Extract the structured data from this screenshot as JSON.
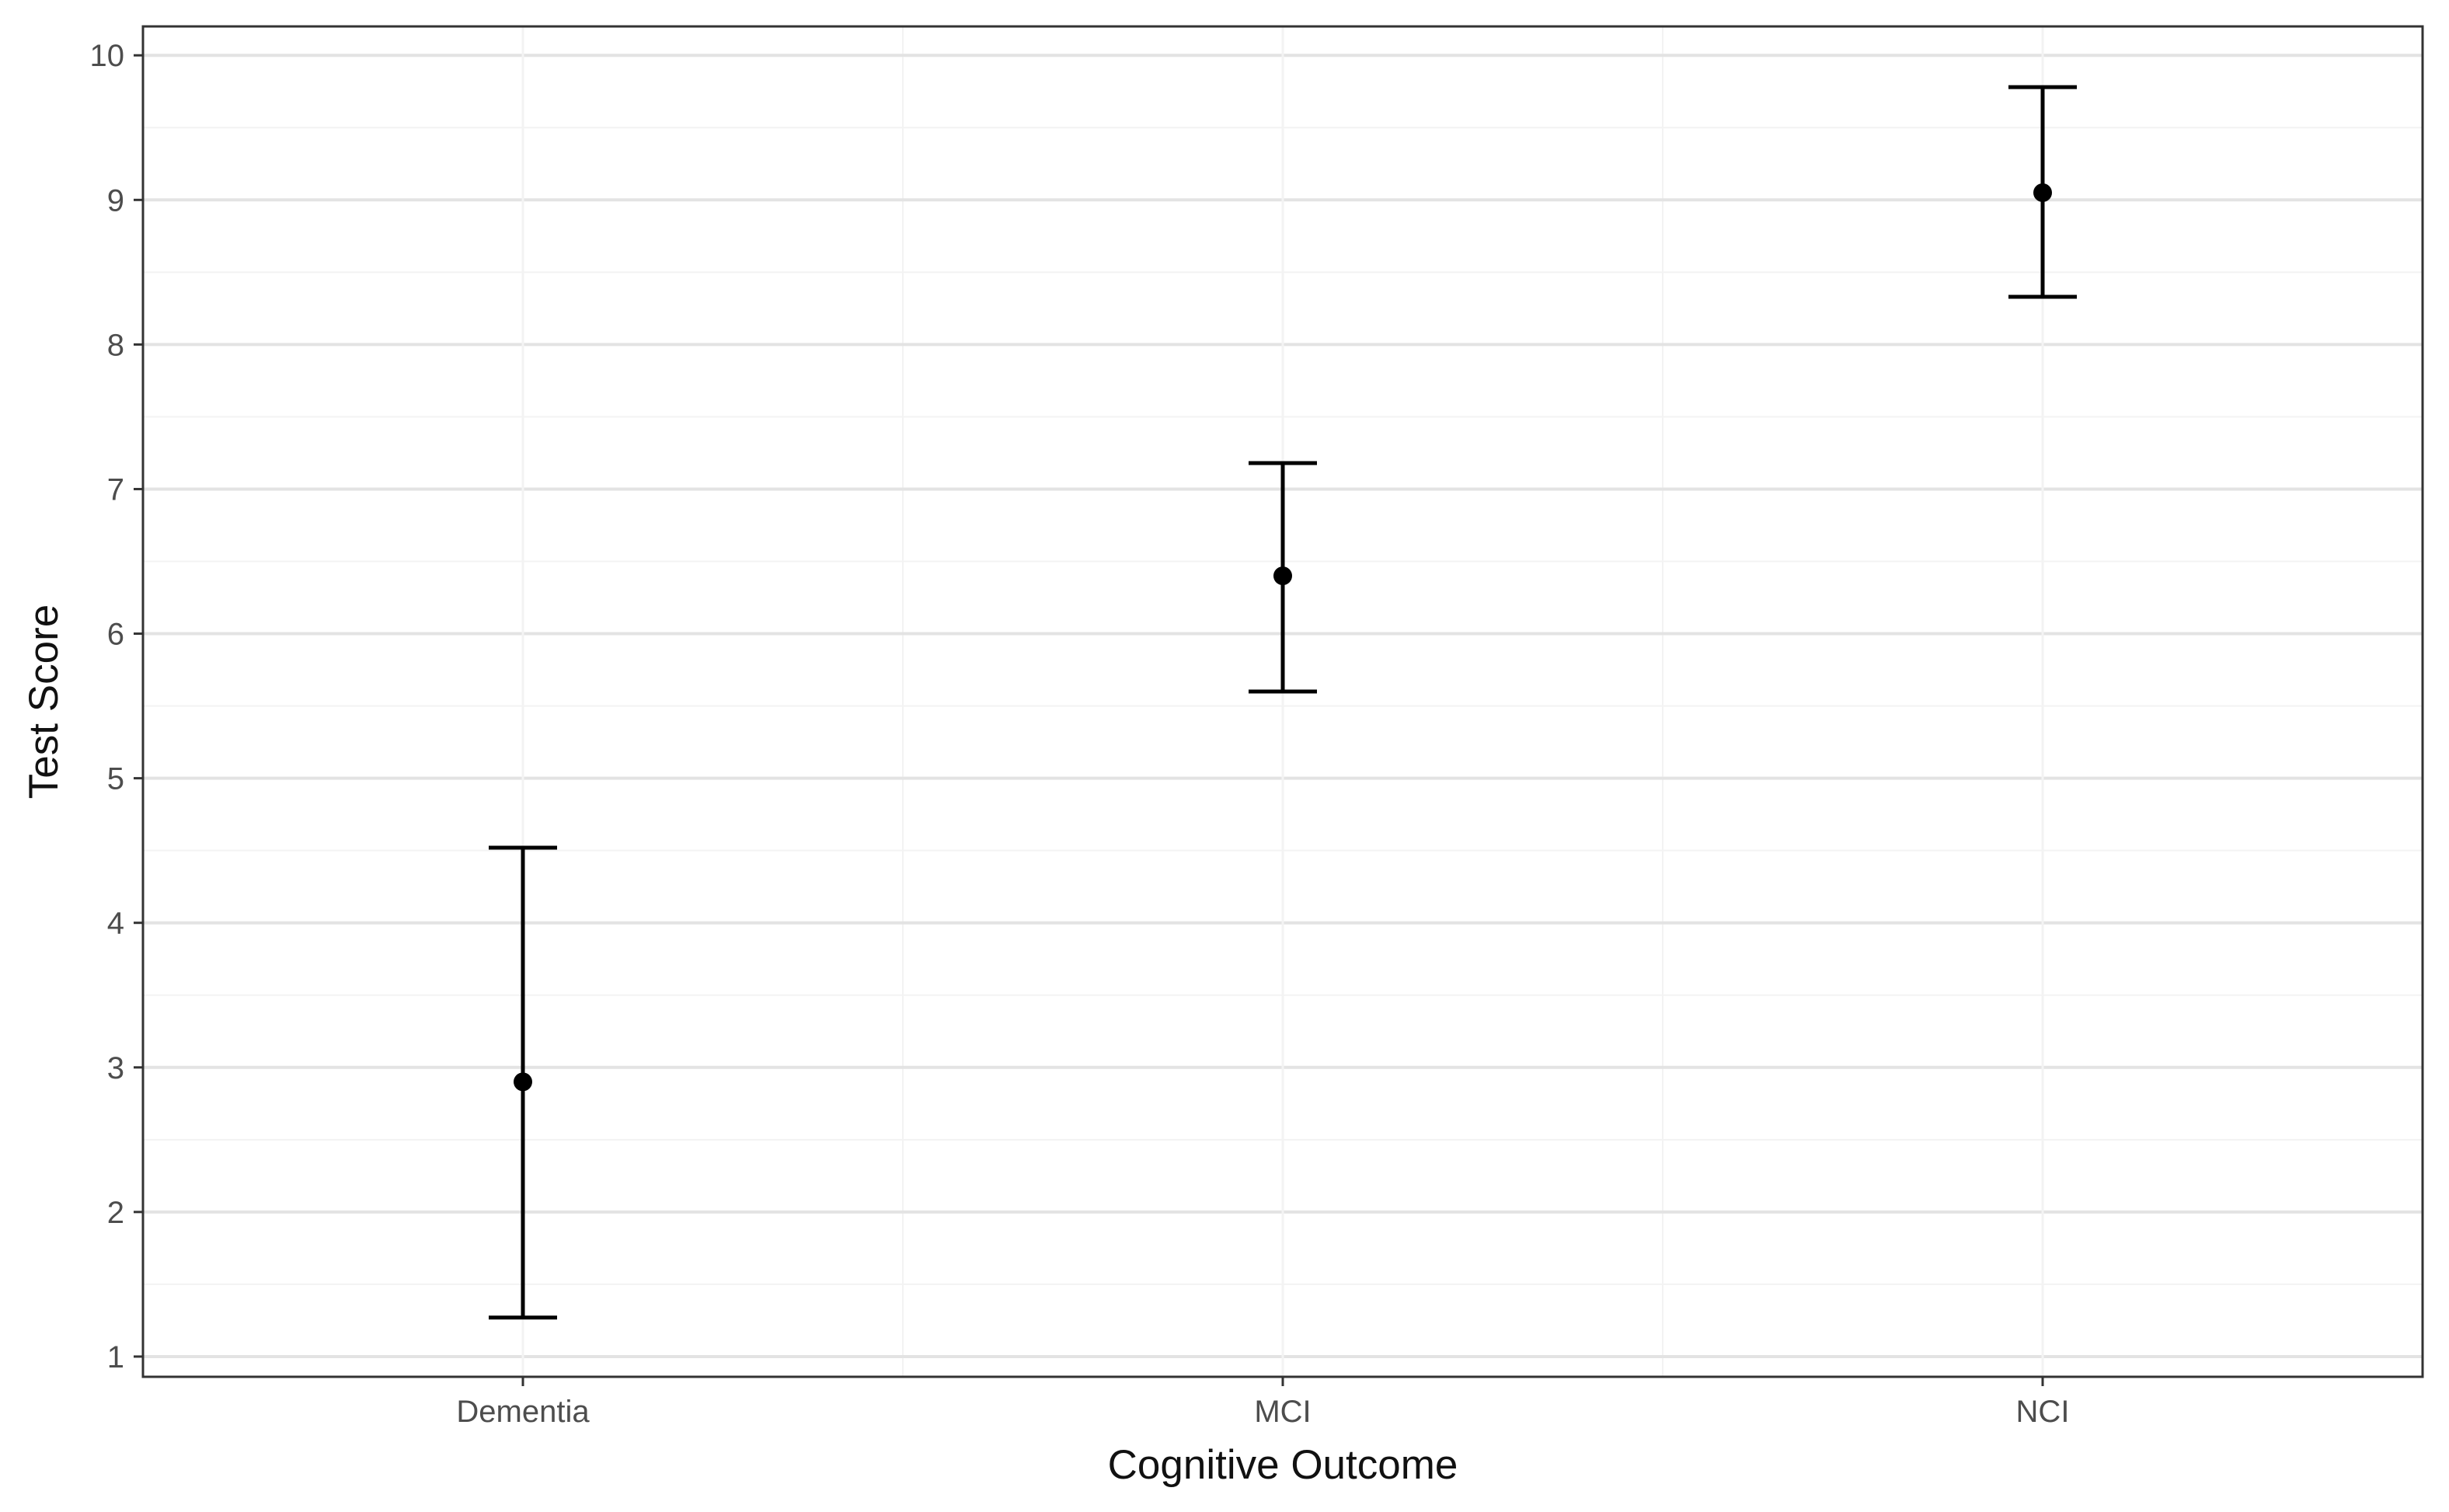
{
  "chart_data": {
    "type": "scatter",
    "subtype": "point-with-error-bars",
    "title": "",
    "xlabel": "Cognitive Outcome",
    "ylabel": "Test Score",
    "categories": [
      "Dementia",
      "MCI",
      "NCI"
    ],
    "series": [
      {
        "values": [
          2.9,
          6.4,
          9.05
        ],
        "lower": [
          1.27,
          5.6,
          8.33
        ],
        "upper": [
          4.52,
          7.18,
          9.78
        ]
      }
    ],
    "y_ticks": [
      1,
      2,
      3,
      4,
      5,
      6,
      7,
      8,
      9,
      10
    ],
    "ylim": [
      0.86,
      10.2
    ],
    "grid": "horizontal major and minor gridlines",
    "legend": "none",
    "colors": {
      "marks": "#000000",
      "grid_major": "#e3e3e3",
      "grid_minor": "#f3f3f3",
      "panel_border": "#333333",
      "tick_text": "#4d4d4d"
    }
  }
}
